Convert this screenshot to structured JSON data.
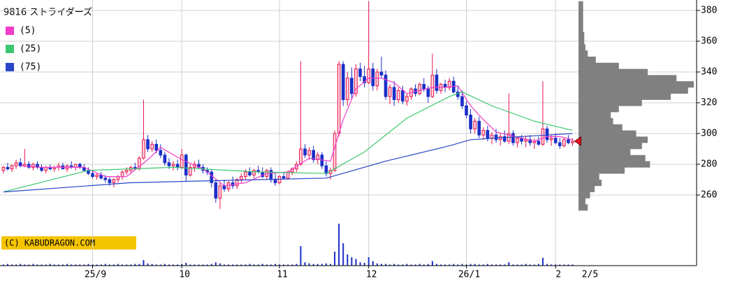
{
  "chart_data": {
    "type": "candlestick",
    "title": "9816 ストライダーズ",
    "copyright": "(C) KABUDRAGON.COM",
    "last_date": "2/5",
    "ylim": [
      250,
      386.8
    ],
    "yticks": [
      260,
      280,
      300,
      320,
      340,
      360,
      380
    ],
    "xlim": [
      -0.8,
      163.2
    ],
    "xticks": [
      {
        "value": 21,
        "label": "25/9"
      },
      {
        "value": 42,
        "label": "10"
      },
      {
        "value": 65,
        "label": "11"
      },
      {
        "value": 86,
        "label": "12"
      },
      {
        "value": 109,
        "label": "26/1"
      },
      {
        "value": 130,
        "label": "2"
      }
    ],
    "grid": true,
    "up_color": "#e8124a",
    "down_color": "#1a2fc8",
    "candles": [
      [
        276,
        279,
        274,
        278
      ],
      [
        278,
        281,
        276,
        277
      ],
      [
        277,
        280,
        275,
        279
      ],
      [
        279,
        283,
        277,
        281
      ],
      [
        281,
        284,
        278,
        279
      ],
      [
        279,
        290,
        278,
        280
      ],
      [
        280,
        282,
        277,
        278
      ],
      [
        278,
        281,
        276,
        280
      ],
      [
        280,
        282,
        277,
        278
      ],
      [
        278,
        280,
        275,
        276
      ],
      [
        276,
        279,
        274,
        278
      ],
      [
        278,
        280,
        276,
        277
      ],
      [
        277,
        279,
        275,
        278
      ],
      [
        278,
        281,
        276,
        279
      ],
      [
        279,
        281,
        277,
        277
      ],
      [
        277,
        280,
        275,
        279
      ],
      [
        279,
        282,
        277,
        278
      ],
      [
        278,
        280,
        276,
        280
      ],
      [
        280,
        281,
        277,
        278
      ],
      [
        278,
        280,
        275,
        276
      ],
      [
        276,
        278,
        273,
        274
      ],
      [
        274,
        276,
        271,
        272
      ],
      [
        272,
        274,
        270,
        273
      ],
      [
        273,
        275,
        270,
        271
      ],
      [
        271,
        273,
        268,
        270
      ],
      [
        270,
        272,
        266,
        268
      ],
      [
        268,
        271,
        265,
        270
      ],
      [
        270,
        273,
        268,
        272
      ],
      [
        272,
        276,
        270,
        275
      ],
      [
        275,
        278,
        273,
        276
      ],
      [
        276,
        279,
        274,
        278
      ],
      [
        278,
        281,
        276,
        277
      ],
      [
        277,
        285,
        276,
        284
      ],
      [
        284,
        322,
        283,
        296
      ],
      [
        296,
        299,
        288,
        290
      ],
      [
        290,
        295,
        288,
        293
      ],
      [
        293,
        296,
        287,
        289
      ],
      [
        289,
        293,
        284,
        286
      ],
      [
        286,
        288,
        279,
        281
      ],
      [
        281,
        284,
        277,
        279
      ],
      [
        279,
        282,
        276,
        280
      ],
      [
        280,
        283,
        276,
        278
      ],
      [
        278,
        290,
        277,
        286
      ],
      [
        286,
        287,
        269,
        273
      ],
      [
        273,
        280,
        272,
        278
      ],
      [
        278,
        282,
        275,
        280
      ],
      [
        280,
        283,
        277,
        278
      ],
      [
        278,
        280,
        274,
        276
      ],
      [
        276,
        278,
        273,
        275
      ],
      [
        275,
        277,
        265,
        268
      ],
      [
        268,
        270,
        255,
        258
      ],
      [
        258,
        268,
        251,
        266
      ],
      [
        266,
        270,
        262,
        264
      ],
      [
        264,
        269,
        262,
        268
      ],
      [
        268,
        272,
        264,
        266
      ],
      [
        266,
        271,
        264,
        270
      ],
      [
        270,
        274,
        268,
        272
      ],
      [
        272,
        277,
        270,
        275
      ],
      [
        275,
        278,
        272,
        273
      ],
      [
        273,
        277,
        271,
        276
      ],
      [
        276,
        279,
        274,
        275
      ],
      [
        275,
        278,
        271,
        272
      ],
      [
        272,
        277,
        270,
        276
      ],
      [
        276,
        278,
        268,
        270
      ],
      [
        270,
        274,
        266,
        268
      ],
      [
        268,
        273,
        267,
        272
      ],
      [
        272,
        275,
        270,
        271
      ],
      [
        271,
        276,
        270,
        275
      ],
      [
        275,
        278,
        273,
        277
      ],
      [
        277,
        282,
        275,
        280
      ],
      [
        280,
        347,
        279,
        290
      ],
      [
        290,
        293,
        284,
        286
      ],
      [
        286,
        291,
        283,
        289
      ],
      [
        289,
        292,
        281,
        283
      ],
      [
        283,
        288,
        280,
        286
      ],
      [
        286,
        288,
        277,
        279
      ],
      [
        279,
        282,
        272,
        274
      ],
      [
        274,
        278,
        270,
        276
      ],
      [
        276,
        302,
        275,
        300
      ],
      [
        300,
        347,
        298,
        345
      ],
      [
        345,
        347,
        318,
        322
      ],
      [
        322,
        340,
        318,
        336
      ],
      [
        336,
        343,
        322,
        326
      ],
      [
        326,
        345,
        324,
        342
      ],
      [
        342,
        346,
        334,
        337
      ],
      [
        337,
        344,
        330,
        333
      ],
      [
        333,
        386,
        332,
        342
      ],
      [
        342,
        346,
        328,
        331
      ],
      [
        331,
        342,
        328,
        340
      ],
      [
        340,
        350,
        336,
        338
      ],
      [
        338,
        341,
        322,
        324
      ],
      [
        324,
        332,
        319,
        330
      ],
      [
        330,
        334,
        318,
        322
      ],
      [
        322,
        330,
        320,
        328
      ],
      [
        328,
        331,
        319,
        321
      ],
      [
        321,
        326,
        318,
        324
      ],
      [
        324,
        330,
        322,
        329
      ],
      [
        329,
        332,
        324,
        326
      ],
      [
        326,
        333,
        325,
        332
      ],
      [
        332,
        336,
        327,
        329
      ],
      [
        329,
        331,
        320,
        324
      ],
      [
        324,
        352,
        323,
        338
      ],
      [
        338,
        342,
        326,
        328
      ],
      [
        328,
        333,
        326,
        332
      ],
      [
        332,
        335,
        327,
        330
      ],
      [
        330,
        336,
        328,
        334
      ],
      [
        334,
        337,
        326,
        327
      ],
      [
        327,
        331,
        322,
        324
      ],
      [
        324,
        328,
        316,
        318
      ],
      [
        318,
        321,
        310,
        312
      ],
      [
        312,
        316,
        300,
        303
      ],
      [
        303,
        310,
        300,
        308
      ],
      [
        308,
        311,
        297,
        299
      ],
      [
        299,
        304,
        296,
        302
      ],
      [
        302,
        305,
        295,
        297
      ],
      [
        297,
        301,
        293,
        299
      ],
      [
        299,
        303,
        294,
        296
      ],
      [
        296,
        300,
        292,
        298
      ],
      [
        298,
        302,
        294,
        295
      ],
      [
        295,
        326,
        293,
        300
      ],
      [
        300,
        302,
        292,
        294
      ],
      [
        294,
        298,
        291,
        297
      ],
      [
        297,
        299,
        293,
        295
      ],
      [
        295,
        298,
        291,
        296
      ],
      [
        296,
        299,
        292,
        294
      ],
      [
        294,
        297,
        290,
        295
      ],
      [
        295,
        298,
        292,
        293
      ],
      [
        293,
        334,
        292,
        303
      ],
      [
        303,
        305,
        294,
        296
      ],
      [
        296,
        299,
        292,
        297
      ],
      [
        297,
        300,
        293,
        294
      ],
      [
        294,
        297,
        290,
        292
      ],
      [
        292,
        297,
        291,
        296
      ],
      [
        296,
        299,
        293,
        294
      ],
      [
        294,
        297,
        292,
        295
      ]
    ],
    "volume_lim": [
      0,
      100
    ],
    "volume": [
      2,
      3,
      2,
      2,
      3,
      2,
      2,
      3,
      2,
      2,
      2,
      3,
      2,
      2,
      2,
      3,
      2,
      2,
      2,
      2,
      3,
      2,
      2,
      2,
      3,
      2,
      2,
      3,
      2,
      2,
      2,
      3,
      3,
      10,
      4,
      3,
      2,
      2,
      3,
      2,
      2,
      2,
      3,
      5,
      2,
      2,
      2,
      2,
      2,
      3,
      6,
      4,
      2,
      2,
      2,
      2,
      2,
      2,
      3,
      2,
      2,
      3,
      2,
      2,
      3,
      2,
      2,
      2,
      2,
      3,
      35,
      6,
      4,
      3,
      3,
      3,
      4,
      3,
      25,
      75,
      40,
      20,
      15,
      12,
      6,
      5,
      15,
      8,
      4,
      3,
      3,
      2,
      3,
      2,
      2,
      3,
      2,
      2,
      3,
      2,
      3,
      8,
      3,
      2,
      2,
      2,
      3,
      2,
      3,
      2,
      3,
      3,
      2,
      2,
      3,
      2,
      2,
      2,
      2,
      6,
      2,
      2,
      2,
      3,
      2,
      2,
      3,
      14,
      3,
      2,
      2,
      2,
      2,
      2,
      2
    ],
    "series": [
      {
        "name": "(5)",
        "color": "#f03cc8",
        "x": [
          4,
          9,
          14,
          19,
          24,
          29,
          34,
          37,
          42,
          47,
          52,
          57,
          62,
          67,
          72,
          77,
          80,
          83,
          86,
          89,
          92,
          95,
          98,
          101,
          104,
          107,
          110,
          113,
          116,
          119,
          122,
          125,
          128,
          131,
          134
        ],
        "values": [
          279,
          278,
          278,
          278,
          272,
          272,
          283,
          291,
          283,
          277,
          266,
          268,
          274,
          275,
          284,
          282,
          309,
          329,
          336,
          336,
          333,
          326,
          328,
          330,
          330,
          331,
          318,
          309,
          301,
          299,
          297,
          295,
          298,
          298,
          296
        ]
      },
      {
        "name": "(25)",
        "color": "#3cc86e",
        "x": [
          0,
          20,
          40,
          60,
          76,
          85,
          95,
          105,
          108,
          115,
          125,
          134
        ],
        "values": [
          262,
          276,
          278,
          275,
          274,
          288,
          310,
          324,
          327,
          318,
          308,
          302
        ]
      },
      {
        "name": "(75)",
        "color": "#2846c8",
        "x": [
          0,
          30,
          60,
          76,
          90,
          105,
          110,
          122,
          134
        ],
        "values": [
          262,
          268,
          270,
          271,
          282,
          292,
          296,
          298,
          300
        ]
      }
    ],
    "profile_bins": [
      250,
      254,
      258,
      262,
      266,
      270,
      274,
      278,
      282,
      286,
      290,
      294,
      298,
      302,
      306,
      310,
      314,
      318,
      322,
      326,
      330,
      334,
      338,
      342,
      346,
      350,
      354,
      358,
      362,
      366,
      370,
      374,
      378,
      382,
      386
    ],
    "profile": [
      8,
      6,
      10,
      14,
      20,
      18,
      40,
      62,
      58,
      45,
      55,
      60,
      50,
      38,
      30,
      28,
      35,
      55,
      80,
      95,
      100,
      85,
      60,
      35,
      15,
      8,
      6,
      5,
      5,
      4,
      4,
      4,
      4,
      4
    ],
    "profile_color": "#808080"
  }
}
